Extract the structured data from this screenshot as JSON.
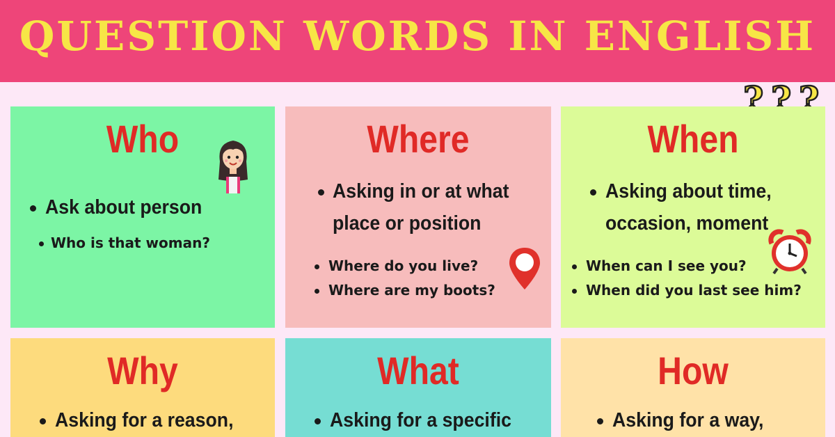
{
  "title": "QUESTION WORDS IN ENGLISH",
  "colors": {
    "banner": "#ee4579",
    "title_text": "#f7e646",
    "heading_red": "#e02a26",
    "background": "#fde8f7"
  },
  "cards": [
    {
      "word": "Who",
      "color": "#7cf5a5",
      "desc": [
        "Ask about person"
      ],
      "examples": [
        "Who is that woman?"
      ],
      "icon": "woman-icon"
    },
    {
      "word": "Where",
      "color": "#f7bcbc",
      "desc": [
        "Asking in or at what",
        "place or position"
      ],
      "examples": [
        "Where do you live?",
        "Where are my boots?"
      ],
      "icon": "map-pin-icon"
    },
    {
      "word": "When",
      "color": "#dcfb98",
      "desc": [
        "Asking about time,",
        "occasion, moment"
      ],
      "examples": [
        "When can I see you?",
        "When did you last see him?"
      ],
      "icon": "alarm-clock-icon"
    },
    {
      "word": "Why",
      "color": "#fddb7d",
      "desc": [
        "Asking for a reason,"
      ],
      "examples": []
    },
    {
      "word": "What",
      "color": "#76ddd3",
      "desc": [
        "Asking for a specific"
      ],
      "examples": []
    },
    {
      "word": "How",
      "color": "#ffe2a8",
      "desc": [
        "Asking for a way,"
      ],
      "examples": []
    }
  ],
  "decoration": {
    "icon": "question-marks-icon"
  }
}
